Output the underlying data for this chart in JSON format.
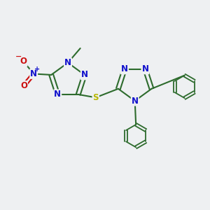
{
  "bg_color": "#eef0f2",
  "bond_color": "#2d6b2d",
  "bond_width": 1.5,
  "n_color": "#1010cc",
  "o_color": "#cc1010",
  "s_color": "#b8b800",
  "figsize": [
    3.0,
    3.0
  ],
  "dpi": 100,
  "xlim": [
    0,
    10
  ],
  "ylim": [
    0,
    10
  ]
}
